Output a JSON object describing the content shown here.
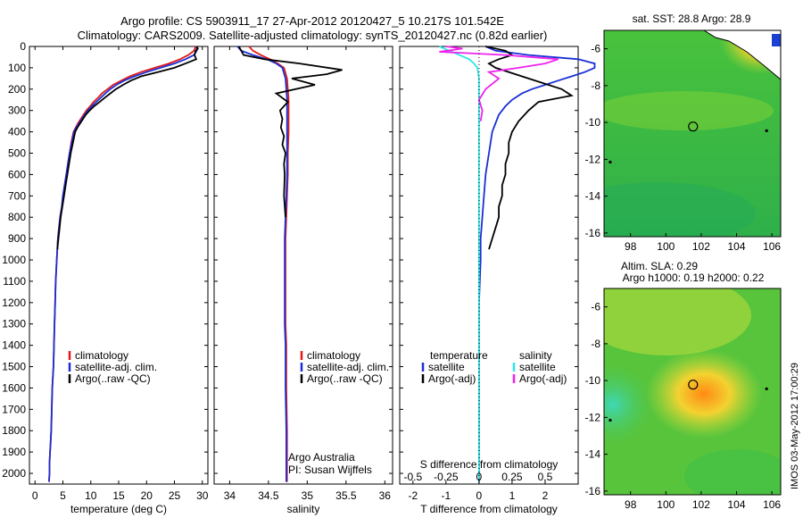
{
  "title": {
    "line1": "Argo profile: CS 5903911_17 27-Apr-2012 20120427_5 10.217S 101.542E",
    "line2": "Climatology: CARS2009. Satellite-adjusted climatology: synTS_20120427.nc (0.82d earlier)"
  },
  "side_text": "IMOS 03-May-2012 17:00:29",
  "depth_ticks": [
    0,
    100,
    200,
    300,
    400,
    500,
    600,
    700,
    800,
    900,
    1000,
    1100,
    1200,
    1300,
    1400,
    1500,
    1600,
    1700,
    1800,
    1900,
    2000
  ],
  "colors": {
    "climatology": "#e0191b",
    "satellite": "#1a2fd4",
    "argo": "#000000",
    "cyan": "#2ee6e6",
    "magenta": "#ee22ee"
  },
  "chart_data": [
    {
      "type": "line",
      "id": "temperature",
      "xlabel": "temperature (deg C)",
      "xlim": [
        -1,
        31
      ],
      "ylim": [
        2050,
        0
      ],
      "xticks": [
        0,
        5,
        10,
        15,
        20,
        25,
        30
      ],
      "legend": {
        "placement": "lower-center",
        "entries": [
          "climatology",
          "satellite-adj. clim.",
          "Argo(..raw -QC)"
        ]
      },
      "series": [
        {
          "name": "climatology",
          "color": "climatology",
          "x": [
            28.8,
            28.5,
            27.5,
            26.0,
            24.0,
            21.5,
            19.0,
            17.0,
            15.5,
            14.0,
            13.0,
            12.0,
            11.3,
            10.5,
            9.9,
            9.2,
            8.7,
            8.2,
            7.7,
            7.3,
            6.9,
            6.5,
            6.2,
            5.9,
            5.6,
            5.3,
            5.0,
            4.8,
            4.5,
            4.3,
            4.1,
            3.9,
            3.7,
            3.6,
            3.5,
            3.4,
            3.3,
            3.1,
            3.0,
            2.9,
            2.8,
            2.7,
            2.6,
            2.6,
            2.5
          ],
          "y": [
            0,
            20,
            40,
            60,
            80,
            100,
            120,
            140,
            160,
            180,
            200,
            220,
            240,
            260,
            280,
            300,
            320,
            340,
            360,
            380,
            400,
            450,
            500,
            550,
            600,
            650,
            700,
            750,
            800,
            850,
            900,
            1000,
            1100,
            1200,
            1300,
            1400,
            1500,
            1600,
            1700,
            1800,
            1850,
            1900,
            1950,
            2000,
            2040
          ]
        },
        {
          "name": "satellite-adj. clim.",
          "color": "satellite",
          "x": [
            29.0,
            29.0,
            28.5,
            27.0,
            25.0,
            22.5,
            20.0,
            17.8,
            16.0,
            14.6,
            13.5,
            12.6,
            11.8,
            11.0,
            10.2,
            9.5,
            8.9,
            8.4,
            7.9,
            7.4,
            7.0,
            6.6,
            6.2,
            5.9,
            5.6,
            5.3,
            5.0,
            4.8,
            4.5,
            4.3,
            4.1,
            3.9,
            3.7,
            3.6,
            3.5,
            3.4,
            3.3,
            3.1,
            3.0,
            2.9,
            2.8,
            2.7,
            2.6,
            2.6,
            2.5
          ],
          "y": [
            0,
            20,
            40,
            60,
            80,
            100,
            120,
            140,
            160,
            180,
            200,
            220,
            240,
            260,
            280,
            300,
            320,
            340,
            360,
            380,
            400,
            450,
            500,
            550,
            600,
            650,
            700,
            750,
            800,
            850,
            900,
            1000,
            1100,
            1200,
            1300,
            1400,
            1500,
            1600,
            1700,
            1800,
            1850,
            1900,
            1950,
            2000,
            2040
          ]
        },
        {
          "name": "Argo(..raw -QC)",
          "color": "argo",
          "x": [
            29.0,
            29.2,
            28.8,
            28.6,
            28.9,
            27.0,
            25.0,
            22.0,
            19.0,
            17.2,
            15.8,
            14.5,
            13.5,
            12.5,
            11.6,
            10.6,
            9.8,
            9.1,
            8.6,
            8.1,
            7.6,
            7.2,
            6.8,
            6.4,
            6.1,
            5.8,
            5.5,
            5.2,
            4.9,
            4.6,
            4.4,
            4.2,
            4.0
          ],
          "y": [
            0,
            10,
            20,
            40,
            60,
            80,
            100,
            120,
            140,
            160,
            180,
            200,
            220,
            240,
            260,
            280,
            300,
            320,
            340,
            360,
            380,
            400,
            450,
            500,
            550,
            600,
            650,
            700,
            750,
            800,
            850,
            900,
            950
          ]
        }
      ]
    },
    {
      "type": "line",
      "id": "salinity",
      "xlabel": "salinity",
      "xlim": [
        33.8,
        36.1
      ],
      "ylim": [
        2050,
        0
      ],
      "xticks": [
        34,
        34.5,
        35,
        35.5,
        36
      ],
      "xticklabels": [
        "34",
        "34.5",
        "35",
        "35.5",
        "36"
      ],
      "legend": {
        "placement": "lower-right",
        "entries": [
          "climatology",
          "satellite-adj. clim.",
          "Argo(..raw -QC)"
        ]
      },
      "annotations": [
        "Argo Australia",
        "PI: Susan Wijffels"
      ],
      "series": [
        {
          "name": "climatology",
          "color": "climatology",
          "x": [
            34.25,
            34.3,
            34.4,
            34.52,
            34.62,
            34.7,
            34.74,
            34.75,
            34.76,
            34.76,
            34.76,
            34.75,
            34.75,
            34.74,
            34.73,
            34.72,
            34.72,
            34.72,
            34.72,
            34.72,
            34.73,
            34.73,
            34.73,
            34.74,
            34.74,
            34.74
          ],
          "y": [
            0,
            20,
            40,
            60,
            80,
            100,
            150,
            200,
            250,
            300,
            400,
            500,
            600,
            700,
            800,
            900,
            1000,
            1100,
            1200,
            1300,
            1400,
            1500,
            1600,
            1800,
            2000,
            2040
          ]
        },
        {
          "name": "satellite-adj. clim.",
          "color": "satellite",
          "x": [
            34.1,
            34.15,
            34.3,
            34.48,
            34.6,
            34.68,
            34.72,
            34.73,
            34.74,
            34.74,
            34.74,
            34.74,
            34.74,
            34.73,
            34.72,
            34.71,
            34.71,
            34.71,
            34.71,
            34.71,
            34.72,
            34.72,
            34.72,
            34.73,
            34.73,
            34.73
          ],
          "y": [
            0,
            20,
            40,
            60,
            80,
            100,
            150,
            200,
            250,
            300,
            400,
            500,
            600,
            700,
            800,
            900,
            1000,
            1100,
            1200,
            1300,
            1400,
            1500,
            1600,
            1800,
            2000,
            2040
          ]
        },
        {
          "name": "Argo(..raw -QC)",
          "color": "argo",
          "x": [
            34.12,
            34.15,
            34.18,
            34.45,
            34.9,
            35.45,
            35.25,
            34.8,
            35.1,
            34.6,
            34.75,
            34.65,
            34.68,
            34.66,
            34.7,
            34.68,
            34.72,
            34.7,
            34.71,
            34.7,
            34.72
          ],
          "y": [
            0,
            20,
            40,
            60,
            80,
            110,
            130,
            150,
            180,
            220,
            260,
            300,
            340,
            380,
            420,
            460,
            500,
            550,
            600,
            700,
            800
          ]
        }
      ]
    },
    {
      "type": "line",
      "id": "differences",
      "xlabel": "T difference from climatology",
      "xlabel_top": "S difference from climatology",
      "xlim": [
        -2.4,
        3.0
      ],
      "ylim": [
        2050,
        0
      ],
      "xticks": [
        -2,
        -1,
        0,
        1,
        2
      ],
      "s_xticks": [
        -0.5,
        -0.25,
        0,
        0.25,
        0.5
      ],
      "legend": {
        "placement": "lower-center",
        "temperature_heading": "temperature",
        "salinity_heading": "salinity",
        "entries": [
          "satellite",
          "Argo(-adj)",
          "satellite",
          "Argo(-adj)"
        ]
      },
      "series": [
        {
          "name": "temperature satellite",
          "color": "satellite",
          "x": [
            0.2,
            0.5,
            1.5,
            3.0,
            3.5,
            3.5,
            3.2,
            2.8,
            2.4,
            2.0,
            1.6,
            1.3,
            1.0,
            0.8,
            0.6,
            0.5,
            0.4,
            0.3,
            0.2,
            0.15,
            0.1,
            0.05,
            0.05,
            0.0,
            0.0,
            0.0,
            0.0
          ],
          "y": [
            0,
            20,
            40,
            60,
            80,
            100,
            120,
            140,
            160,
            180,
            200,
            220,
            250,
            280,
            320,
            360,
            400,
            500,
            600,
            700,
            800,
            900,
            1000,
            1200,
            1500,
            1800,
            2040
          ]
        },
        {
          "name": "temperature Argo(-adj)",
          "color": "argo",
          "x": [
            0.2,
            0.8,
            1.0,
            0.6,
            0.3,
            0.5,
            1.5,
            2.5,
            2.8,
            1.8,
            1.5,
            1.2,
            1.0,
            0.9,
            0.9,
            0.8,
            0.8,
            0.7,
            0.7,
            0.6,
            0.6,
            0.5,
            0.4,
            0.3
          ],
          "y": [
            0,
            20,
            40,
            60,
            80,
            100,
            150,
            200,
            230,
            260,
            300,
            350,
            400,
            450,
            500,
            550,
            600,
            650,
            700,
            750,
            800,
            850,
            900,
            950
          ]
        },
        {
          "name": "salinity satellite",
          "color": "cyan",
          "x": [
            -1.2,
            -0.9,
            -0.6,
            -0.3,
            -0.15,
            -0.05,
            0.0,
            0.0,
            0.0,
            0.0,
            0.0,
            0.0,
            0.0
          ],
          "y": [
            0,
            20,
            40,
            60,
            80,
            100,
            150,
            200,
            300,
            500,
            1000,
            1500,
            2040
          ]
        },
        {
          "name": "salinity Argo(-adj)",
          "color": "magenta",
          "x": [
            -1.0,
            -0.5,
            -1.2,
            0.8,
            2.4,
            2.0,
            1.2,
            0.3,
            0.6,
            0.2,
            0.0,
            0.1,
            0.05
          ],
          "y": [
            0,
            10,
            25,
            40,
            60,
            80,
            100,
            120,
            150,
            200,
            250,
            300,
            350
          ]
        }
      ]
    },
    {
      "type": "heatmap",
      "id": "sst-map",
      "title": "sat. SST: 28.8 Argo: 28.9",
      "xlim": [
        96.5,
        106.5
      ],
      "ylim": [
        -16.2,
        -5.0
      ],
      "xticks": [
        98,
        100,
        102,
        104,
        106
      ],
      "yticks": [
        -6,
        -8,
        -10,
        -12,
        -14,
        -16
      ],
      "argo_position": [
        101.54,
        -10.22
      ]
    },
    {
      "type": "heatmap",
      "id": "sla-map",
      "title_line1": "Altim. SLA: 0.29",
      "title_line2": "Argo h1000: 0.19 h2000: 0.22",
      "xlim": [
        96.5,
        106.5
      ],
      "ylim": [
        -16.2,
        -5.0
      ],
      "xticks": [
        98,
        100,
        102,
        104,
        106
      ],
      "yticks": [
        -6,
        -8,
        -10,
        -12,
        -14,
        -16
      ],
      "argo_position": [
        101.54,
        -10.22
      ]
    }
  ]
}
